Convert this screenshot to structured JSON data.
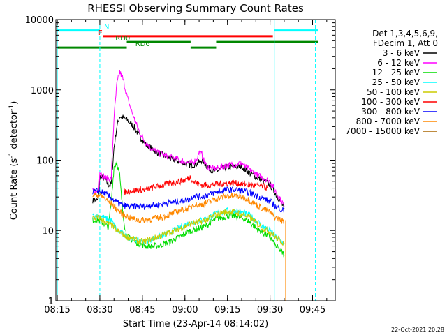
{
  "chart_data": {
    "type": "line",
    "title": "RHESSI Observing Summary Count Rates",
    "xlabel": "Start Time (23-Apr-14 08:14:02)",
    "ylabel": "Count Rate (s",
    "ylabel_sup1": "-1",
    "ylabel_mid": " detector",
    "ylabel_sup2": "-1",
    "ylabel_end": ")",
    "y_scale": "log",
    "ylim": [
      1,
      10000
    ],
    "xlim_minutes": [
      494.5,
      593
    ],
    "x_ticks": [
      {
        "label": "08:15",
        "minute": 495
      },
      {
        "label": "08:30",
        "minute": 510
      },
      {
        "label": "08:45",
        "minute": 525
      },
      {
        "label": "09:00",
        "minute": 540
      },
      {
        "label": "09:15",
        "minute": 555
      },
      {
        "label": "09:30",
        "minute": 570
      },
      {
        "label": "09:45",
        "minute": 585
      }
    ],
    "y_ticks": [
      {
        "label": "10000",
        "value": 10000
      },
      {
        "label": "1000",
        "value": 1000
      },
      {
        "label": "100",
        "value": 100
      },
      {
        "label": "10",
        "value": 10
      },
      {
        "label": "1",
        "value": 1
      }
    ],
    "legend_header": [
      "Det 1,3,4,5,6,9,",
      "FDecim 1, Att 0"
    ],
    "timestamp": "22-Oct-2021 20:28",
    "series": [
      {
        "name": "3 - 6 keV",
        "color": "#000000",
        "points": [
          [
            507.5,
            27
          ],
          [
            509.5,
            27
          ],
          [
            510,
            58
          ],
          [
            512,
            52
          ],
          [
            513,
            45
          ],
          [
            514,
            45
          ],
          [
            515,
            150
          ],
          [
            516,
            300
          ],
          [
            517,
            420
          ],
          [
            518,
            410
          ],
          [
            520,
            360
          ],
          [
            522,
            300
          ],
          [
            524,
            220
          ],
          [
            526,
            170
          ],
          [
            528,
            150
          ],
          [
            530,
            130
          ],
          [
            532,
            120
          ],
          [
            535,
            105
          ],
          [
            538,
            95
          ],
          [
            540,
            90
          ],
          [
            542,
            85
          ],
          [
            544,
            88
          ],
          [
            546,
            100
          ],
          [
            547,
            90
          ],
          [
            548,
            80
          ],
          [
            550,
            70
          ],
          [
            552,
            72
          ],
          [
            555,
            80
          ],
          [
            558,
            80
          ],
          [
            560,
            82
          ],
          [
            561,
            75
          ],
          [
            563,
            65
          ],
          [
            566,
            55
          ],
          [
            568,
            50
          ],
          [
            570,
            45
          ],
          [
            572,
            33
          ],
          [
            574,
            25
          ],
          [
            575,
            20
          ]
        ]
      },
      {
        "name": "6 - 12 keV",
        "color": "#ff00ff",
        "points": [
          [
            507.5,
            36
          ],
          [
            509.5,
            36
          ],
          [
            510,
            68
          ],
          [
            512,
            55
          ],
          [
            513,
            55
          ],
          [
            514,
            55
          ],
          [
            515,
            400
          ],
          [
            516,
            1200
          ],
          [
            517,
            1800
          ],
          [
            518,
            1500
          ],
          [
            520,
            700
          ],
          [
            522,
            400
          ],
          [
            524,
            250
          ],
          [
            526,
            180
          ],
          [
            528,
            150
          ],
          [
            530,
            130
          ],
          [
            532,
            120
          ],
          [
            535,
            110
          ],
          [
            538,
            100
          ],
          [
            540,
            95
          ],
          [
            542,
            90
          ],
          [
            544,
            100
          ],
          [
            545,
            130
          ],
          [
            546,
            120
          ],
          [
            547,
            90
          ],
          [
            548,
            80
          ],
          [
            550,
            75
          ],
          [
            552,
            78
          ],
          [
            555,
            85
          ],
          [
            558,
            88
          ],
          [
            560,
            92
          ],
          [
            561,
            82
          ],
          [
            563,
            72
          ],
          [
            566,
            60
          ],
          [
            568,
            55
          ],
          [
            570,
            50
          ],
          [
            572,
            36
          ],
          [
            574,
            27
          ],
          [
            575,
            22
          ]
        ]
      },
      {
        "name": "12 - 25 keV",
        "color": "#00dd00",
        "points": [
          [
            507.5,
            14
          ],
          [
            510,
            14
          ],
          [
            512,
            12
          ],
          [
            513,
            11
          ],
          [
            514,
            25
          ],
          [
            515,
            80
          ],
          [
            516,
            95
          ],
          [
            517,
            60
          ],
          [
            518,
            20
          ],
          [
            519,
            10
          ],
          [
            520,
            8
          ],
          [
            522,
            7
          ],
          [
            524,
            6.5
          ],
          [
            526,
            6
          ],
          [
            528,
            6
          ],
          [
            530,
            6
          ],
          [
            532,
            6.3
          ],
          [
            535,
            7
          ],
          [
            538,
            8
          ],
          [
            540,
            9
          ],
          [
            542,
            10
          ],
          [
            544,
            10.5
          ],
          [
            546,
            11
          ],
          [
            548,
            12
          ],
          [
            550,
            14
          ],
          [
            552,
            15
          ],
          [
            555,
            16
          ],
          [
            558,
            16
          ],
          [
            560,
            15
          ],
          [
            562,
            14
          ],
          [
            564,
            12
          ],
          [
            566,
            10
          ],
          [
            568,
            9
          ],
          [
            570,
            8
          ],
          [
            572,
            6
          ],
          [
            574,
            5
          ],
          [
            575,
            4.5
          ]
        ]
      },
      {
        "name": "25 - 50 keV",
        "color": "#00ffff",
        "points": [
          [
            507.5,
            16
          ],
          [
            510,
            16
          ],
          [
            512,
            15
          ],
          [
            514,
            14
          ],
          [
            515,
            12
          ],
          [
            516,
            10
          ],
          [
            518,
            9
          ],
          [
            520,
            8
          ],
          [
            522,
            7.5
          ],
          [
            524,
            7
          ],
          [
            526,
            7
          ],
          [
            528,
            7.5
          ],
          [
            530,
            8
          ],
          [
            532,
            8.5
          ],
          [
            535,
            9.5
          ],
          [
            538,
            11
          ],
          [
            540,
            12
          ],
          [
            542,
            13
          ],
          [
            544,
            13.5
          ],
          [
            546,
            14
          ],
          [
            548,
            15
          ],
          [
            550,
            16.5
          ],
          [
            552,
            18
          ],
          [
            555,
            19
          ],
          [
            558,
            19
          ],
          [
            560,
            18
          ],
          [
            562,
            17
          ],
          [
            564,
            15
          ],
          [
            566,
            13
          ],
          [
            568,
            11
          ],
          [
            570,
            10
          ],
          [
            572,
            8
          ],
          [
            574,
            7
          ],
          [
            575,
            6.5
          ]
        ]
      },
      {
        "name": "50 - 100 keV",
        "color": "#cccc00",
        "points": [
          [
            507.5,
            15
          ],
          [
            510,
            15
          ],
          [
            512,
            13
          ],
          [
            514,
            12
          ],
          [
            516,
            10
          ],
          [
            518,
            9
          ],
          [
            520,
            8
          ],
          [
            522,
            7.5
          ],
          [
            524,
            7
          ],
          [
            526,
            7
          ],
          [
            528,
            7.5
          ],
          [
            530,
            8
          ],
          [
            532,
            8.5
          ],
          [
            535,
            9.5
          ],
          [
            538,
            10.5
          ],
          [
            540,
            11.5
          ],
          [
            542,
            12.5
          ],
          [
            544,
            13
          ],
          [
            546,
            13.5
          ],
          [
            548,
            14.5
          ],
          [
            550,
            16
          ],
          [
            552,
            17.5
          ],
          [
            555,
            18.5
          ],
          [
            558,
            18
          ],
          [
            560,
            17
          ],
          [
            562,
            16
          ],
          [
            564,
            14
          ],
          [
            566,
            12
          ],
          [
            568,
            10.5
          ],
          [
            570,
            9.5
          ],
          [
            572,
            8
          ],
          [
            574,
            7
          ],
          [
            575,
            6.5
          ]
        ]
      },
      {
        "name": "100 - 300 keV",
        "color": "#ff0000",
        "points": [
          [
            518.5,
            35
          ],
          [
            520,
            36
          ],
          [
            522,
            37
          ],
          [
            524,
            38
          ],
          [
            526,
            38
          ],
          [
            528,
            40
          ],
          [
            530,
            42
          ],
          [
            532,
            44
          ],
          [
            535,
            47
          ],
          [
            538,
            50
          ],
          [
            540,
            52
          ],
          [
            541,
            55
          ],
          [
            542,
            58
          ],
          [
            543,
            50
          ],
          [
            545,
            45
          ],
          [
            548,
            44
          ],
          [
            550,
            45
          ],
          [
            552,
            46
          ],
          [
            555,
            47
          ],
          [
            558,
            47
          ],
          [
            560,
            46
          ],
          [
            562,
            45
          ],
          [
            564,
            44
          ],
          [
            566,
            43
          ],
          [
            568,
            42
          ],
          [
            569,
            40
          ]
        ]
      },
      {
        "name": "300 - 800 keV",
        "color": "#0000ff",
        "points": [
          [
            507.5,
            36
          ],
          [
            510,
            36
          ],
          [
            512,
            33
          ],
          [
            514,
            29
          ],
          [
            516,
            25
          ],
          [
            518,
            23
          ],
          [
            520,
            22
          ],
          [
            522,
            22
          ],
          [
            524,
            22
          ],
          [
            526,
            22
          ],
          [
            528,
            23
          ],
          [
            530,
            23
          ],
          [
            532,
            24
          ],
          [
            535,
            25
          ],
          [
            538,
            26
          ],
          [
            540,
            27
          ],
          [
            542,
            28
          ],
          [
            543,
            32
          ],
          [
            545,
            30
          ],
          [
            548,
            32
          ],
          [
            550,
            34
          ],
          [
            552,
            36
          ],
          [
            555,
            38
          ],
          [
            558,
            38
          ],
          [
            560,
            37
          ],
          [
            562,
            35
          ],
          [
            564,
            33
          ],
          [
            566,
            30
          ],
          [
            568,
            28
          ],
          [
            570,
            26
          ],
          [
            572,
            22
          ],
          [
            574,
            20
          ],
          [
            575,
            19
          ]
        ]
      },
      {
        "name": "800 - 7000 keV",
        "color": "#ff8800",
        "points": [
          [
            507.5,
            32
          ],
          [
            510,
            32
          ],
          [
            512,
            28
          ],
          [
            514,
            24
          ],
          [
            516,
            20
          ],
          [
            518,
            17
          ],
          [
            520,
            15.5
          ],
          [
            522,
            14.5
          ],
          [
            524,
            14
          ],
          [
            526,
            14
          ],
          [
            528,
            14.5
          ],
          [
            530,
            15
          ],
          [
            532,
            15.5
          ],
          [
            535,
            17
          ],
          [
            538,
            19
          ],
          [
            540,
            20
          ],
          [
            542,
            21
          ],
          [
            543,
            24
          ],
          [
            545,
            23
          ],
          [
            548,
            25
          ],
          [
            550,
            27
          ],
          [
            552,
            29
          ],
          [
            555,
            31
          ],
          [
            558,
            31
          ],
          [
            560,
            30
          ],
          [
            562,
            28
          ],
          [
            564,
            25
          ],
          [
            566,
            22
          ],
          [
            568,
            20
          ],
          [
            570,
            18
          ],
          [
            572,
            15
          ],
          [
            574,
            14
          ],
          [
            575,
            13
          ]
        ]
      },
      {
        "name": "7000 - 15000 keV",
        "color": "#aa6600",
        "points": []
      }
    ],
    "data_gaps": [
      {
        "series_index": 7,
        "minute": 575.5,
        "from": 14,
        "to": 1
      }
    ],
    "vertical_lines": [
      {
        "minute": 495,
        "color": "#00ffff",
        "style": "solid"
      },
      {
        "minute": 510,
        "color": "#00ffff",
        "style": "dashed"
      },
      {
        "minute": 571.5,
        "color": "#00ffff",
        "style": "solid"
      },
      {
        "minute": 586,
        "color": "#00ffff",
        "style": "dashed"
      }
    ],
    "flag_bars": [
      {
        "label": "N",
        "color": "#00ffff",
        "y": 7000,
        "segments": [
          [
            495,
            510
          ],
          [
            571.5,
            587
          ]
        ],
        "label_at": 511.5
      },
      {
        "label": "F",
        "color": "#ff0000",
        "y": 5800,
        "segments": [
          [
            511,
            571
          ]
        ],
        "label_at": 509.5
      },
      {
        "label": "RD0",
        "color": "#008800",
        "y": 4800,
        "segments": [
          [
            519.5,
            542
          ],
          [
            551,
            587
          ]
        ],
        "label_at": 515.5
      },
      {
        "label": "RD6",
        "color": "#008800",
        "y": 4000,
        "segments": [
          [
            495,
            519.5
          ],
          [
            542,
            551
          ]
        ],
        "label_at": 522.5
      }
    ]
  }
}
